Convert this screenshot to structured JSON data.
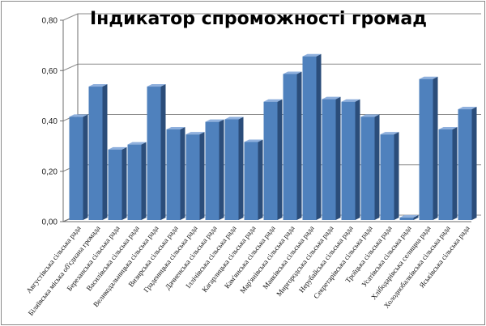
{
  "chart_data": {
    "type": "bar",
    "title": "Індикатор спроможності громад",
    "ylim": [
      0,
      0.8
    ],
    "yticks": [
      "0,00",
      "0,20",
      "0,40",
      "0,60",
      "0,80"
    ],
    "grid": true,
    "categories": [
      "Августівська сільська рада",
      "Біляївська міська об'єднана громада",
      "Березанська сільська рада",
      "Василівська сільська рада",
      "Великодальницька сільська рада",
      "Визирська сільська рада",
      "Граденицька сільська рада",
      "Дачненська сільська рада",
      "Іллічівська сільська рада",
      "Кагарлицька сільська рада",
      "Кам'янська сільська рада",
      "Мар'янівська сільська рада",
      "Маяківська сільська рада",
      "Миргородська сільська рада",
      "Нерубайська сільська рада",
      "Секретарівська сільська рада",
      "Троїцька сільська рада",
      "Усатівська сільська рада",
      "Хлібодарівська селищна рада",
      "Холоднобалківська сільська рада",
      "Яськівська сільська рада"
    ],
    "values": [
      0.41,
      0.53,
      0.28,
      0.3,
      0.53,
      0.36,
      0.34,
      0.39,
      0.4,
      0.31,
      0.47,
      0.58,
      0.65,
      0.48,
      0.47,
      0.41,
      0.34,
      0.01,
      0.56,
      0.36,
      0.44
    ],
    "colors": {
      "front": "#4f81bd",
      "side": "#2b4d7a",
      "top": "#8fb0dd",
      "grid": "#8a8a8a",
      "axis": "#6e6e6e"
    }
  }
}
